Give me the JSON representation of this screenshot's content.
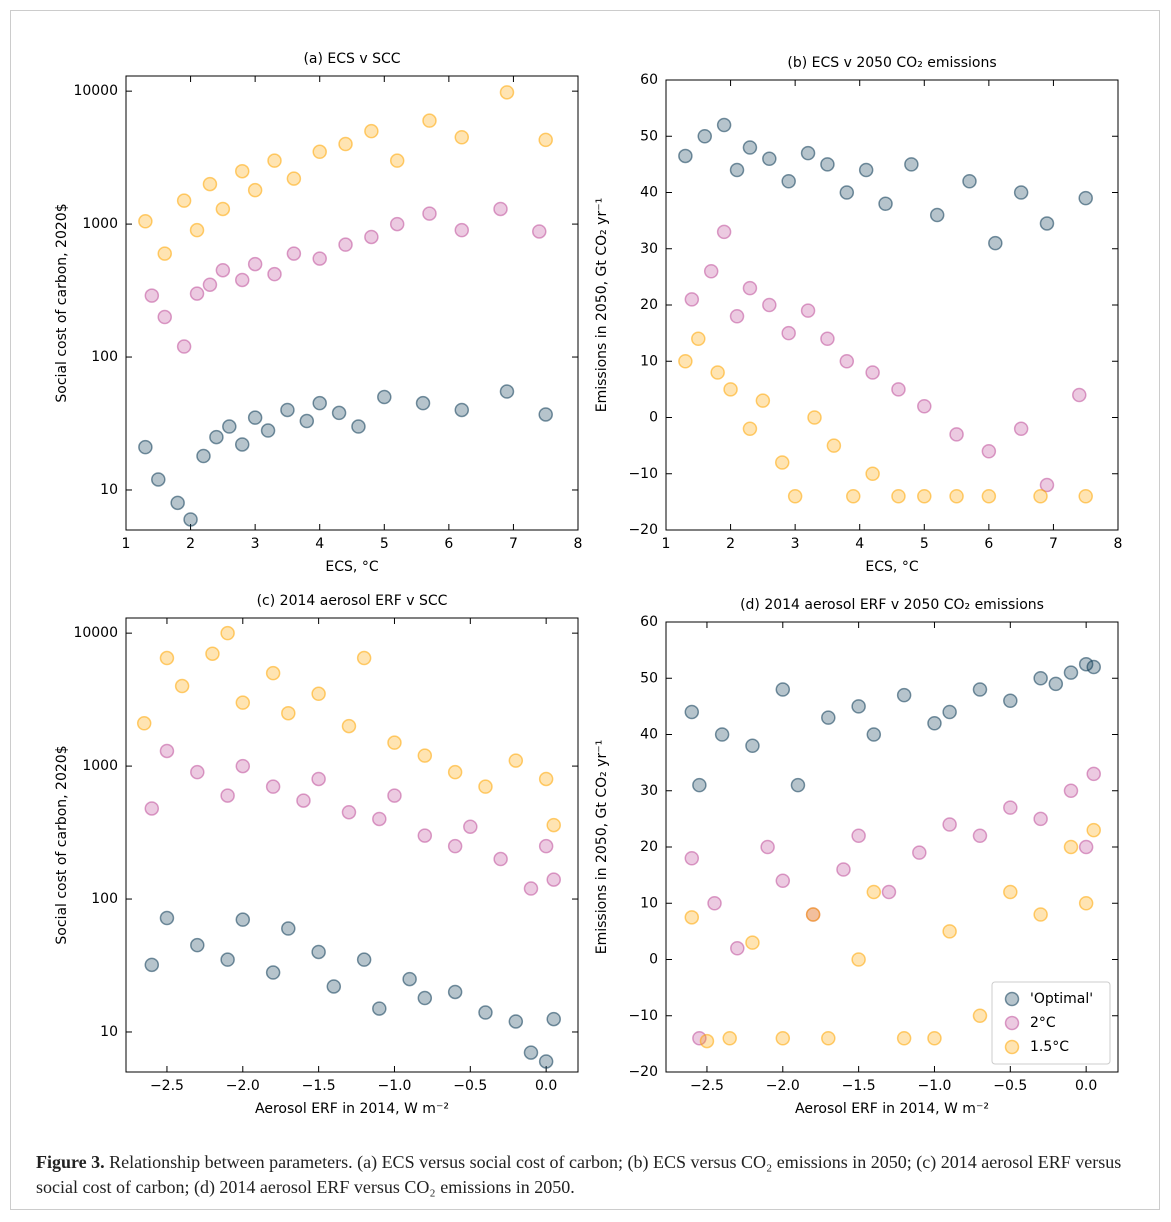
{
  "chart_data": [
    {
      "type": "scatter",
      "title": "(a) ECS v SCC",
      "xlabel": "ECS, °C",
      "ylabel": "Social cost of carbon, 2020$",
      "log_y": true,
      "xlim": [
        1,
        8
      ],
      "ylim": [
        5,
        13000
      ],
      "xticks": [
        1,
        2,
        3,
        4,
        5,
        6,
        7,
        8
      ],
      "yticks": [
        10,
        100,
        1000,
        10000
      ],
      "series": [
        {
          "color": "#0d3b56",
          "x": [
            1.3,
            1.5,
            1.8,
            2.0,
            2.2,
            2.4,
            2.6,
            2.8,
            3.0,
            3.2,
            3.5,
            3.8,
            4.0,
            4.3,
            4.6,
            5.0,
            5.6,
            6.2,
            6.9,
            7.5
          ],
          "values": [
            21,
            12,
            8,
            6,
            18,
            25,
            30,
            22,
            35,
            28,
            40,
            33,
            45,
            38,
            30,
            50,
            45,
            40,
            55,
            37
          ]
        },
        {
          "color": "#c0509a",
          "x": [
            1.4,
            1.6,
            1.9,
            2.1,
            2.3,
            2.5,
            2.8,
            3.0,
            3.3,
            3.6,
            4.0,
            4.4,
            4.8,
            5.2,
            5.7,
            6.2,
            6.8,
            7.4
          ],
          "values": [
            290,
            200,
            120,
            300,
            350,
            450,
            380,
            500,
            420,
            600,
            550,
            700,
            800,
            1000,
            1200,
            900,
            1300,
            880
          ]
        },
        {
          "color": "#ffa500",
          "x": [
            1.3,
            1.6,
            1.9,
            2.1,
            2.3,
            2.5,
            2.8,
            3.0,
            3.3,
            3.6,
            4.0,
            4.4,
            4.8,
            5.2,
            5.7,
            6.2,
            6.9,
            7.5
          ],
          "values": [
            1050,
            600,
            1500,
            900,
            2000,
            1300,
            2500,
            1800,
            3000,
            2200,
            3500,
            4000,
            5000,
            3000,
            6000,
            4500,
            9800,
            4300
          ]
        }
      ]
    },
    {
      "type": "scatter",
      "title": "(b) ECS v 2050 CO₂ emissions",
      "xlabel": "ECS, °C",
      "ylabel": "Emissions in 2050, Gt CO₂ yr⁻¹",
      "xlim": [
        1,
        8
      ],
      "ylim": [
        -20,
        60
      ],
      "xticks": [
        1,
        2,
        3,
        4,
        5,
        6,
        7,
        8
      ],
      "yticks": [
        {
          "value": -20,
          "label": "−20"
        },
        {
          "value": -10,
          "label": "−10"
        },
        0,
        10,
        20,
        30,
        40,
        50,
        60
      ],
      "series": [
        {
          "color": "#0d3b56",
          "x": [
            1.3,
            1.6,
            1.9,
            2.1,
            2.3,
            2.6,
            2.9,
            3.2,
            3.5,
            3.8,
            4.1,
            4.4,
            4.8,
            5.2,
            5.7,
            6.1,
            6.5,
            6.9,
            7.5
          ],
          "values": [
            46.5,
            50,
            52,
            44,
            48,
            46,
            42,
            47,
            45,
            40,
            44,
            38,
            45,
            36,
            42,
            31,
            40,
            34.5,
            39
          ]
        },
        {
          "color": "#c0509a",
          "x": [
            1.4,
            1.7,
            1.9,
            2.1,
            2.3,
            2.6,
            2.9,
            3.2,
            3.5,
            3.8,
            4.2,
            4.6,
            5.0,
            5.5,
            6.0,
            6.5,
            6.9,
            7.4
          ],
          "values": [
            21,
            26,
            33,
            18,
            23,
            20,
            15,
            19,
            14,
            10,
            8,
            5,
            2,
            -3,
            -6,
            -2,
            -12,
            4
          ]
        },
        {
          "color": "#ffa500",
          "x": [
            1.3,
            1.5,
            1.8,
            2.0,
            2.3,
            2.5,
            2.8,
            3.0,
            3.3,
            3.6,
            3.9,
            4.2,
            4.6,
            5.0,
            5.5,
            6.0,
            6.8,
            7.5
          ],
          "values": [
            10,
            14,
            8,
            5,
            -2,
            3,
            -8,
            -14,
            0,
            -5,
            -14,
            -10,
            -14,
            -14,
            -14,
            -14,
            -14,
            -14
          ]
        }
      ]
    },
    {
      "type": "scatter",
      "title": "(c) 2014 aerosol ERF v SCC",
      "xlabel": "Aerosol ERF in 2014, W m⁻²",
      "ylabel": "Social cost of carbon, 2020$",
      "log_y": true,
      "xlim": [
        -2.77,
        0.21
      ],
      "ylim": [
        5,
        13000
      ],
      "xticks": [
        {
          "value": -2.5,
          "label": "−2.5"
        },
        {
          "value": -2,
          "label": "−2.0"
        },
        {
          "value": -1.5,
          "label": "−1.5"
        },
        {
          "value": -1,
          "label": "−1.0"
        },
        {
          "value": -0.5,
          "label": "−0.5"
        },
        {
          "value": 0,
          "label": "0.0"
        }
      ],
      "yticks": [
        10,
        100,
        1000,
        10000
      ],
      "series": [
        {
          "color": "#0d3b56",
          "x": [
            -2.6,
            -2.5,
            -2.3,
            -2.1,
            -2.0,
            -1.8,
            -1.7,
            -1.5,
            -1.4,
            -1.2,
            -1.1,
            -0.9,
            -0.8,
            -0.6,
            -0.4,
            -0.2,
            -0.1,
            0.0,
            0.05
          ],
          "values": [
            32,
            72,
            45,
            35,
            70,
            28,
            60,
            40,
            22,
            35,
            15,
            25,
            18,
            20,
            14,
            12,
            7,
            6,
            12.5
          ]
        },
        {
          "color": "#c0509a",
          "x": [
            -2.6,
            -2.5,
            -2.3,
            -2.1,
            -2.0,
            -1.8,
            -1.6,
            -1.5,
            -1.3,
            -1.1,
            -1.0,
            -0.8,
            -0.6,
            -0.5,
            -0.3,
            -0.1,
            0.0,
            0.05
          ],
          "values": [
            480,
            1300,
            900,
            600,
            1000,
            700,
            550,
            800,
            450,
            400,
            600,
            300,
            250,
            350,
            200,
            120,
            250,
            140
          ]
        },
        {
          "color": "#ffa500",
          "x": [
            -2.65,
            -2.5,
            -2.4,
            -2.2,
            -2.1,
            -2.0,
            -1.8,
            -1.7,
            -1.5,
            -1.3,
            -1.2,
            -1.0,
            -0.8,
            -0.6,
            -0.4,
            -0.2,
            0.0,
            0.05
          ],
          "values": [
            2100,
            6500,
            4000,
            7000,
            10000,
            3000,
            5000,
            2500,
            3500,
            2000,
            6500,
            1500,
            1200,
            900,
            700,
            1100,
            800,
            360
          ]
        }
      ]
    },
    {
      "type": "scatter",
      "title": "(d) 2014 aerosol ERF v 2050 CO₂ emissions",
      "xlabel": "Aerosol ERF in 2014, W m⁻²",
      "ylabel": "Emissions in 2050, Gt CO₂ yr⁻¹",
      "xlim": [
        -2.77,
        0.21
      ],
      "ylim": [
        -20,
        60
      ],
      "xticks": [
        {
          "value": -2.5,
          "label": "−2.5"
        },
        {
          "value": -2,
          "label": "−2.0"
        },
        {
          "value": -1.5,
          "label": "−1.5"
        },
        {
          "value": -1,
          "label": "−1.0"
        },
        {
          "value": -0.5,
          "label": "−0.5"
        },
        {
          "value": 0,
          "label": "0.0"
        }
      ],
      "yticks": [
        {
          "value": -20,
          "label": "−20"
        },
        {
          "value": -10,
          "label": "−10"
        },
        0,
        10,
        20,
        30,
        40,
        50,
        60
      ],
      "legend": "lower right",
      "series": [
        {
          "name": "'Optimal'",
          "color": "#0d3b56",
          "x": [
            -2.6,
            -2.55,
            -2.4,
            -2.2,
            -2.0,
            -1.9,
            -1.7,
            -1.5,
            -1.4,
            -1.2,
            -1.0,
            -0.9,
            -0.7,
            -0.5,
            -0.3,
            -0.2,
            -0.1,
            0.0,
            0.05
          ],
          "values": [
            44,
            31,
            40,
            38,
            48,
            31,
            43,
            45,
            40,
            47,
            42,
            44,
            48,
            46,
            50,
            49,
            51,
            52.5,
            52
          ]
        },
        {
          "name": "2°C",
          "color": "#c0509a",
          "x": [
            -2.6,
            -2.55,
            -2.45,
            -2.3,
            -2.1,
            -2.0,
            -1.8,
            -1.6,
            -1.5,
            -1.3,
            -1.1,
            -0.9,
            -0.7,
            -0.5,
            -0.3,
            -0.1,
            0.0,
            0.05
          ],
          "values": [
            18,
            -14,
            10,
            2,
            20,
            14,
            8,
            16,
            22,
            12,
            19,
            24,
            22,
            27,
            25,
            30,
            20,
            33
          ]
        },
        {
          "name": "1.5°C",
          "color": "#ffa500",
          "x": [
            -2.6,
            -2.5,
            -2.35,
            -2.2,
            -2.0,
            -1.8,
            -1.7,
            -1.5,
            -1.4,
            -1.2,
            -1.0,
            -0.9,
            -0.7,
            -0.5,
            -0.3,
            -0.1,
            0.0,
            0.05
          ],
          "values": [
            7.5,
            -14.5,
            -14,
            3,
            -14,
            8,
            -14,
            0,
            12,
            -14,
            -14,
            5,
            -10,
            12,
            8,
            20,
            10,
            23
          ]
        }
      ]
    }
  ],
  "caption": {
    "label": "Figure 3.",
    "text": " Relationship between parameters. (a) ECS versus social cost of carbon; (b) ECS versus CO₂ emissions in 2050; (c) 2014 aerosol ERF versus social cost of carbon; (d) 2014 aerosol ERF versus CO₂ emissions in 2050."
  }
}
